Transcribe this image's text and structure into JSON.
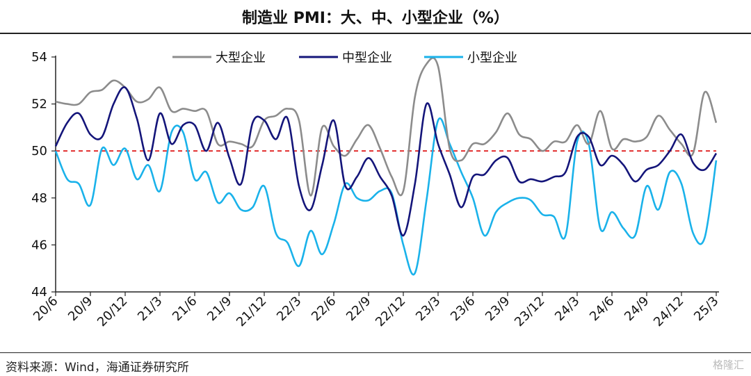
{
  "title": "制造业 PMI：大、中、小型企业（%）",
  "source": "资料来源：Wind，海通证券研究所",
  "watermark": "格隆汇",
  "chart_data": {
    "type": "line",
    "ylim": [
      44,
      54
    ],
    "yticks": [
      44,
      46,
      48,
      50,
      52,
      54
    ],
    "reference_line": {
      "y": 50,
      "color": "#e02020",
      "style": "dashed"
    },
    "legend_position": "top",
    "x": [
      "20/6",
      "20/7",
      "20/8",
      "20/9",
      "20/10",
      "20/11",
      "20/12",
      "21/1",
      "21/2",
      "21/3",
      "21/4",
      "21/5",
      "21/6",
      "21/7",
      "21/8",
      "21/9",
      "21/10",
      "21/11",
      "21/12",
      "22/1",
      "22/2",
      "22/3",
      "22/4",
      "22/5",
      "22/6",
      "22/7",
      "22/8",
      "22/9",
      "22/10",
      "22/11",
      "22/12",
      "23/1",
      "23/2",
      "23/3",
      "23/4",
      "23/5",
      "23/6",
      "23/7",
      "23/8",
      "23/9",
      "23/10",
      "23/11",
      "23/12",
      "24/1",
      "24/2",
      "24/3",
      "24/4",
      "24/5",
      "24/6",
      "24/7",
      "24/8",
      "24/9",
      "24/10",
      "24/11",
      "24/12",
      "25/1",
      "25/2",
      "25/3"
    ],
    "xtick_labels": [
      "20/6",
      "20/9",
      "20/12",
      "21/3",
      "21/6",
      "21/9",
      "21/12",
      "22/3",
      "22/6",
      "22/9",
      "22/12",
      "23/3",
      "23/6",
      "23/9",
      "23/12",
      "24/3",
      "24/6",
      "24/9",
      "24/12",
      "25/3"
    ],
    "series": [
      {
        "name": "大型企业",
        "color": "#8c8c8c",
        "values": [
          52.1,
          52.0,
          52.0,
          52.5,
          52.6,
          53.0,
          52.7,
          52.1,
          52.2,
          52.7,
          51.7,
          51.8,
          51.7,
          51.7,
          50.3,
          50.4,
          50.3,
          50.2,
          51.3,
          51.5,
          51.8,
          51.3,
          48.1,
          51.0,
          50.2,
          49.8,
          50.5,
          51.1,
          50.1,
          48.9,
          48.3,
          52.3,
          53.7,
          53.6,
          50.1,
          49.6,
          50.3,
          50.3,
          50.8,
          51.6,
          50.7,
          50.5,
          50.0,
          50.4,
          50.4,
          51.1,
          50.3,
          51.7,
          50.1,
          50.5,
          50.4,
          50.6,
          51.5,
          50.9,
          50.3,
          49.9,
          52.5,
          51.2
        ]
      },
      {
        "name": "中型企业",
        "color": "#14157a",
        "values": [
          50.2,
          51.2,
          51.6,
          50.7,
          50.6,
          52.0,
          52.7,
          51.4,
          49.6,
          51.6,
          50.3,
          51.1,
          51.1,
          50.0,
          51.2,
          49.7,
          48.6,
          51.2,
          51.3,
          50.5,
          51.4,
          48.5,
          47.5,
          49.4,
          51.3,
          48.5,
          48.9,
          49.7,
          48.9,
          48.1,
          46.4,
          48.6,
          52.0,
          50.3,
          49.0,
          47.6,
          48.9,
          49.0,
          49.6,
          49.7,
          48.7,
          48.8,
          48.7,
          48.9,
          49.1,
          50.6,
          50.6,
          49.4,
          49.8,
          49.4,
          48.7,
          49.2,
          49.4,
          50.0,
          50.7,
          49.5,
          49.2,
          49.9
        ]
      },
      {
        "name": "小型企业",
        "color": "#1ab2ea",
        "values": [
          50.0,
          48.8,
          48.6,
          47.7,
          50.1,
          49.4,
          50.1,
          48.8,
          49.4,
          48.3,
          50.8,
          50.8,
          48.8,
          49.1,
          47.8,
          48.2,
          47.5,
          47.6,
          48.5,
          46.5,
          46.1,
          45.1,
          46.6,
          45.6,
          46.9,
          48.6,
          48.0,
          47.9,
          48.3,
          48.2,
          46.0,
          44.8,
          47.9,
          51.3,
          50.3,
          49.1,
          48.0,
          46.4,
          47.4,
          47.8,
          48.0,
          47.9,
          47.3,
          47.2,
          46.4,
          50.4,
          50.3,
          46.7,
          47.4,
          46.7,
          46.4,
          48.5,
          47.5,
          49.1,
          48.6,
          46.5,
          46.3,
          49.6
        ]
      }
    ]
  }
}
